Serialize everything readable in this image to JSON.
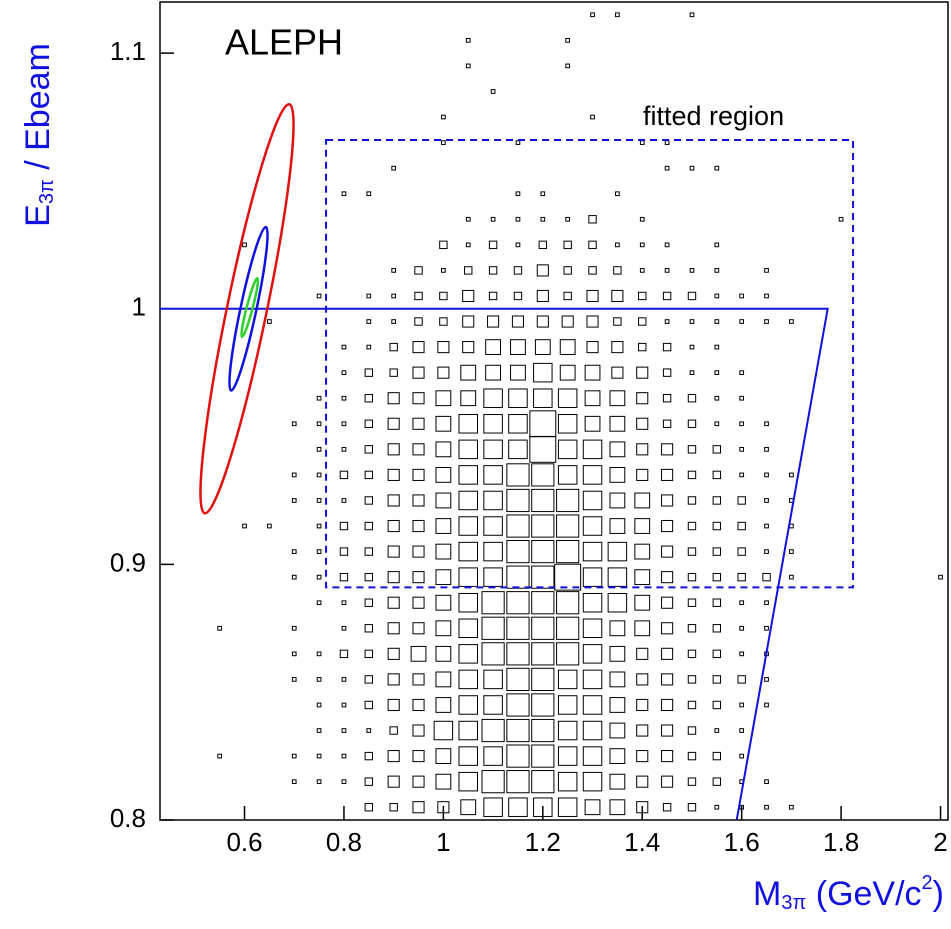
{
  "chart_data": {
    "type": "histogram2d",
    "title": "ALEPH",
    "x_label": {
      "main": "M",
      "sub": "3π",
      "rest": " (GeV/c",
      "sup": "2",
      "end": ")"
    },
    "y_label": {
      "main": "E",
      "sub": "3π",
      "rest": " / Ebeam"
    },
    "xlim": [
      0.43,
      2.015
    ],
    "ylim": [
      0.8,
      1.12
    ],
    "xticks": [
      0.6,
      0.8,
      1,
      1.2,
      1.4,
      1.6,
      1.8,
      2
    ],
    "yticks": [
      0.8,
      0.9,
      1,
      1.1
    ],
    "color": "#000000",
    "x_centers": [
      0.55,
      0.6,
      0.65,
      0.7,
      0.75,
      0.8,
      0.85,
      0.9,
      0.95,
      1,
      1.05,
      1.1,
      1.15,
      1.2,
      1.25,
      1.3,
      1.35,
      1.4,
      1.45,
      1.5,
      1.55,
      1.6,
      1.65,
      1.7,
      1.75,
      1.8,
      1.85,
      1.9,
      1.95,
      2
    ],
    "y_centers": [
      1.115,
      1.105,
      1.095,
      1.085,
      1.075,
      1.065,
      1.055,
      1.045,
      1.035,
      1.025,
      1.015,
      1.005,
      0.995,
      0.985,
      0.975,
      0.965,
      0.955,
      0.945,
      0.935,
      0.925,
      0.915,
      0.905,
      0.895,
      0.885,
      0.875,
      0.865,
      0.855,
      0.845,
      0.835,
      0.825,
      0.815,
      0.805
    ],
    "counts": [
      [
        0,
        0,
        0,
        0,
        0,
        0,
        0,
        0,
        0,
        0,
        0,
        0,
        0,
        0,
        0,
        1,
        1,
        0,
        0,
        1,
        0,
        0,
        0,
        0,
        0,
        0,
        0,
        0,
        0,
        0
      ],
      [
        0,
        0,
        0,
        0,
        0,
        0,
        0,
        0,
        0,
        0,
        1,
        0,
        0,
        0,
        1,
        0,
        0,
        0,
        0,
        0,
        0,
        0,
        0,
        0,
        0,
        0,
        0,
        0,
        0,
        0
      ],
      [
        0,
        0,
        0,
        0,
        0,
        0,
        0,
        0,
        0,
        0,
        1,
        0,
        0,
        0,
        1,
        0,
        0,
        0,
        0,
        0,
        0,
        0,
        0,
        0,
        0,
        0,
        0,
        0,
        0,
        0
      ],
      [
        0,
        0,
        0,
        0,
        0,
        0,
        0,
        0,
        0,
        0,
        0,
        1,
        0,
        0,
        0,
        0,
        0,
        0,
        0,
        0,
        0,
        0,
        0,
        0,
        0,
        0,
        0,
        0,
        0,
        0
      ],
      [
        0,
        0,
        0,
        0,
        0,
        0,
        0,
        0,
        0,
        1,
        0,
        0,
        0,
        0,
        0,
        1,
        0,
        0,
        0,
        0,
        0,
        0,
        0,
        0,
        0,
        0,
        0,
        0,
        0,
        0
      ],
      [
        0,
        0,
        0,
        0,
        0,
        0,
        0,
        0,
        0,
        1,
        0,
        0,
        1,
        0,
        0,
        0,
        0,
        1,
        1,
        0,
        0,
        0,
        0,
        0,
        0,
        0,
        0,
        0,
        0,
        0
      ],
      [
        0,
        0,
        0,
        0,
        0,
        0,
        0,
        1,
        0,
        0,
        0,
        0,
        0,
        0,
        0,
        0,
        0,
        0,
        1,
        1,
        1,
        0,
        0,
        0,
        0,
        0,
        0,
        0,
        0,
        0
      ],
      [
        0,
        0,
        0,
        0,
        0,
        1,
        1,
        0,
        0,
        0,
        0,
        0,
        1,
        1,
        0,
        0,
        1,
        0,
        0,
        0,
        0,
        0,
        0,
        0,
        0,
        0,
        0,
        0,
        0,
        0
      ],
      [
        0,
        0,
        0,
        0,
        0,
        0,
        0,
        0,
        0,
        0,
        1,
        1,
        1,
        1,
        1,
        2,
        0,
        1,
        0,
        0,
        0,
        0,
        0,
        0,
        0,
        1,
        0,
        0,
        0,
        0
      ],
      [
        0,
        1,
        0,
        0,
        0,
        0,
        0,
        0,
        0,
        2,
        1,
        2,
        1,
        2,
        2,
        2,
        1,
        1,
        1,
        0,
        1,
        0,
        0,
        0,
        0,
        0,
        0,
        0,
        0,
        0
      ],
      [
        0,
        0,
        0,
        0,
        0,
        0,
        0,
        1,
        2,
        1,
        2,
        2,
        2,
        3,
        2,
        2,
        2,
        1,
        1,
        1,
        1,
        0,
        1,
        0,
        0,
        0,
        0,
        0,
        0,
        0
      ],
      [
        0,
        0,
        0,
        0,
        1,
        0,
        1,
        1,
        2,
        2,
        3,
        2,
        2,
        3,
        2,
        3,
        3,
        2,
        2,
        2,
        1,
        1,
        1,
        0,
        0,
        0,
        0,
        0,
        0,
        0
      ],
      [
        0,
        0,
        1,
        0,
        0,
        0,
        1,
        1,
        2,
        2,
        3,
        3,
        3,
        3,
        3,
        3,
        2,
        2,
        1,
        1,
        1,
        1,
        1,
        1,
        0,
        0,
        0,
        0,
        0,
        0
      ],
      [
        0,
        0,
        0,
        0,
        0,
        1,
        1,
        2,
        3,
        3,
        3,
        4,
        4,
        4,
        4,
        3,
        3,
        2,
        2,
        1,
        1,
        0,
        0,
        0,
        0,
        0,
        0,
        0,
        0,
        0
      ],
      [
        0,
        0,
        0,
        0,
        0,
        1,
        2,
        2,
        3,
        3,
        4,
        4,
        4,
        5,
        4,
        4,
        3,
        3,
        2,
        1,
        1,
        1,
        0,
        0,
        0,
        0,
        0,
        0,
        0,
        0
      ],
      [
        0,
        0,
        0,
        0,
        1,
        1,
        2,
        3,
        3,
        4,
        4,
        5,
        5,
        5,
        5,
        4,
        4,
        3,
        2,
        2,
        1,
        1,
        0,
        0,
        0,
        0,
        0,
        0,
        0,
        0
      ],
      [
        0,
        0,
        0,
        1,
        1,
        1,
        2,
        3,
        3,
        4,
        5,
        5,
        5,
        7,
        5,
        4,
        4,
        3,
        2,
        2,
        1,
        1,
        1,
        0,
        0,
        0,
        0,
        0,
        0,
        0
      ],
      [
        0,
        0,
        0,
        0,
        1,
        1,
        2,
        3,
        3,
        4,
        5,
        5,
        5,
        7,
        5,
        5,
        4,
        3,
        3,
        2,
        2,
        1,
        1,
        0,
        0,
        0,
        0,
        0,
        0,
        0
      ],
      [
        0,
        0,
        0,
        1,
        1,
        2,
        2,
        3,
        3,
        4,
        5,
        5,
        6,
        6,
        5,
        5,
        4,
        3,
        3,
        2,
        2,
        1,
        1,
        1,
        0,
        0,
        0,
        0,
        0,
        0
      ],
      [
        0,
        0,
        0,
        1,
        1,
        1,
        2,
        3,
        3,
        4,
        5,
        5,
        6,
        6,
        6,
        5,
        4,
        4,
        3,
        2,
        2,
        2,
        1,
        1,
        0,
        0,
        0,
        0,
        0,
        0
      ],
      [
        0,
        1,
        1,
        0,
        1,
        2,
        2,
        3,
        3,
        4,
        5,
        5,
        6,
        6,
        6,
        5,
        4,
        4,
        3,
        2,
        2,
        2,
        1,
        1,
        0,
        0,
        0,
        0,
        0,
        0
      ],
      [
        0,
        0,
        0,
        1,
        1,
        2,
        2,
        3,
        3,
        4,
        5,
        5,
        6,
        6,
        6,
        5,
        5,
        4,
        3,
        2,
        2,
        2,
        1,
        1,
        0,
        0,
        0,
        0,
        0,
        0
      ],
      [
        0,
        0,
        0,
        1,
        1,
        2,
        2,
        3,
        3,
        4,
        5,
        5,
        6,
        6,
        7,
        5,
        5,
        4,
        3,
        2,
        2,
        2,
        2,
        1,
        0,
        0,
        0,
        0,
        0,
        1
      ],
      [
        0,
        0,
        0,
        0,
        1,
        1,
        2,
        3,
        3,
        4,
        5,
        6,
        6,
        6,
        6,
        5,
        5,
        4,
        3,
        2,
        2,
        1,
        1,
        0,
        0,
        0,
        0,
        0,
        0,
        0
      ],
      [
        1,
        0,
        0,
        1,
        0,
        1,
        2,
        3,
        3,
        4,
        5,
        6,
        6,
        6,
        6,
        5,
        4,
        4,
        3,
        2,
        2,
        1,
        1,
        0,
        0,
        0,
        0,
        0,
        0,
        0
      ],
      [
        0,
        0,
        0,
        1,
        1,
        2,
        2,
        3,
        4,
        4,
        5,
        6,
        6,
        6,
        6,
        5,
        4,
        3,
        3,
        2,
        2,
        1,
        1,
        0,
        0,
        0,
        0,
        0,
        0,
        0
      ],
      [
        0,
        0,
        0,
        1,
        1,
        1,
        2,
        3,
        3,
        4,
        5,
        5,
        6,
        6,
        5,
        5,
        4,
        3,
        3,
        2,
        2,
        2,
        1,
        0,
        0,
        0,
        0,
        0,
        0,
        0
      ],
      [
        0,
        0,
        0,
        0,
        1,
        1,
        2,
        3,
        3,
        4,
        5,
        5,
        6,
        6,
        5,
        5,
        4,
        3,
        3,
        2,
        2,
        1,
        1,
        0,
        0,
        0,
        0,
        0,
        0,
        0
      ],
      [
        0,
        0,
        0,
        0,
        1,
        1,
        1,
        2,
        3,
        5,
        5,
        6,
        6,
        6,
        5,
        5,
        4,
        3,
        3,
        2,
        1,
        1,
        0,
        0,
        0,
        0,
        0,
        0,
        0,
        0
      ],
      [
        1,
        0,
        0,
        1,
        1,
        1,
        2,
        3,
        3,
        4,
        5,
        5,
        6,
        6,
        5,
        5,
        4,
        3,
        3,
        2,
        2,
        1,
        0,
        0,
        0,
        0,
        0,
        0,
        0,
        0
      ],
      [
        0,
        0,
        0,
        1,
        1,
        1,
        2,
        3,
        3,
        4,
        5,
        6,
        6,
        6,
        5,
        5,
        4,
        3,
        3,
        2,
        2,
        1,
        1,
        0,
        0,
        0,
        0,
        0,
        0,
        0
      ],
      [
        0,
        0,
        0,
        0,
        0,
        0,
        2,
        2,
        3,
        3,
        4,
        5,
        5,
        5,
        5,
        4,
        4,
        3,
        2,
        2,
        1,
        1,
        1,
        1,
        0,
        0,
        0,
        0,
        0,
        0
      ]
    ],
    "ellipses": [
      {
        "color": "#e01010",
        "axis_x": [
          0.69,
          0.52
        ],
        "axis_y": [
          1.08,
          0.92
        ],
        "half_width": 0.04
      },
      {
        "color": "#1010e0",
        "axis_x": [
          0.643,
          0.573
        ],
        "axis_y": [
          1.032,
          0.968
        ],
        "half_width": 0.016
      },
      {
        "color": "#30d030",
        "axis_x": [
          0.626,
          0.595
        ],
        "axis_y": [
          1.012,
          0.989
        ],
        "half_width": 0.006
      }
    ],
    "line": {
      "color": "#1010e0",
      "x": [
        0.43,
        1.773,
        1.59
      ],
      "y": [
        1,
        1,
        0.8
      ]
    },
    "region": {
      "label": "fitted region",
      "color": "#1010e0",
      "x": [
        0.764,
        1.824
      ],
      "y": [
        0.891,
        1.066
      ]
    }
  }
}
